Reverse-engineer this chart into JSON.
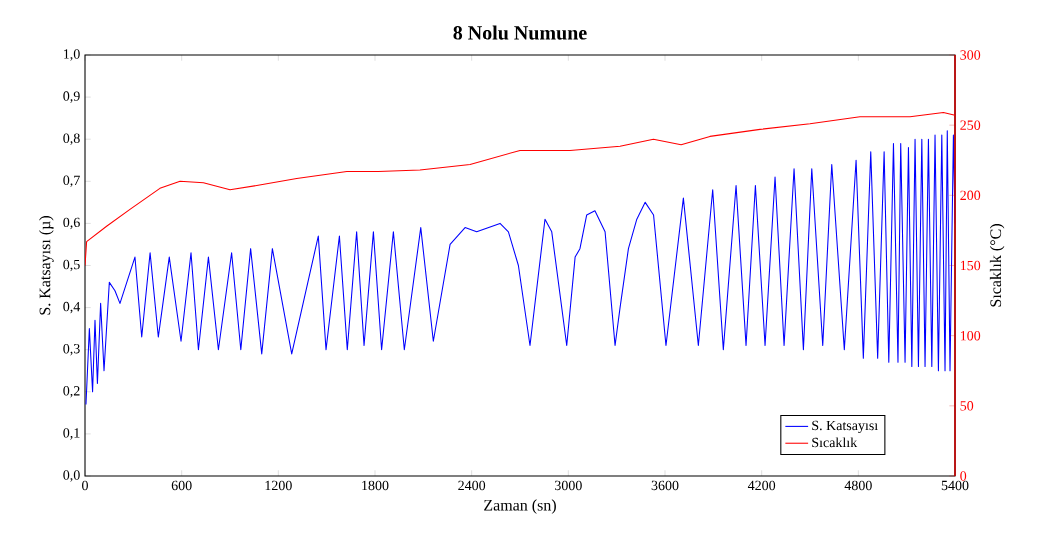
{
  "chart_data": {
    "type": "line",
    "title": "**8 Nolu Numune**",
    "xlabel": "Zaman (sn)",
    "ylabel": "S. Katsayısı (µ)",
    "y2label": "Sıcaklık (°C)",
    "xlim": [
      0,
      5400
    ],
    "xticks": [
      0,
      600,
      1200,
      1800,
      2400,
      3000,
      3600,
      4200,
      4800,
      5400
    ],
    "ylim": [
      0,
      1
    ],
    "yticks": [
      {
        "value": 0,
        "label": "0,0"
      },
      {
        "value": 0.1,
        "label": "0,1"
      },
      {
        "value": 0.2,
        "label": "0,2"
      },
      {
        "value": 0.3,
        "label": "0,3"
      },
      {
        "value": 0.4,
        "label": "0,4"
      },
      {
        "value": 0.5,
        "label": "0,5"
      },
      {
        "value": 0.6,
        "label": "0,6"
      },
      {
        "value": 0.7,
        "label": "0,7"
      },
      {
        "value": 0.8,
        "label": "0,8"
      },
      {
        "value": 0.9,
        "label": "0,9"
      },
      {
        "value": 1,
        "label": "1,0"
      }
    ],
    "y2lim": [
      0,
      300
    ],
    "y2ticks": [
      0,
      50,
      100,
      150,
      200,
      250,
      300
    ],
    "legend": "bottom right",
    "marker": "none",
    "line_style": "solid",
    "grid": false,
    "series": [
      {
        "name": "S. Katsayısı",
        "color": "#0000ff",
        "axis": "y",
        "x": [
          6,
          27,
          47,
          62,
          77,
          97,
          118,
          151,
          186,
          217,
          310,
          352,
          404,
          455,
          523,
          596,
          658,
          704,
          766,
          828,
          910,
          967,
          1028,
          1097,
          1163,
          1283,
          1448,
          1496,
          1579,
          1628,
          1686,
          1732,
          1790,
          1841,
          1914,
          1982,
          2084,
          2162,
          2266,
          2359,
          2431,
          2576,
          2628,
          2690,
          2762,
          2855,
          2897,
          2990,
          3042,
          3072,
          3114,
          3165,
          3228,
          3290,
          3321,
          3373,
          3425,
          3477,
          3529,
          3606,
          3714,
          3807,
          3896,
          3962,
          4041,
          4103,
          4161,
          4221,
          4283,
          4339,
          4401,
          4459,
          4511,
          4579,
          4635,
          4713,
          4786,
          4831,
          4877,
          4920,
          4960,
          4989,
          5018,
          5046,
          5063,
          5090,
          5111,
          5132,
          5152,
          5173,
          5194,
          5214,
          5235,
          5256,
          5276,
          5297,
          5318,
          5338,
          5352,
          5369,
          5390,
          5400
        ],
        "values": [
          0.17,
          0.35,
          0.2,
          0.37,
          0.22,
          0.41,
          0.25,
          0.46,
          0.44,
          0.41,
          0.52,
          0.33,
          0.53,
          0.33,
          0.52,
          0.32,
          0.53,
          0.3,
          0.52,
          0.3,
          0.53,
          0.3,
          0.54,
          0.29,
          0.54,
          0.29,
          0.57,
          0.3,
          0.57,
          0.3,
          0.58,
          0.31,
          0.58,
          0.3,
          0.58,
          0.3,
          0.59,
          0.32,
          0.55,
          0.59,
          0.58,
          0.6,
          0.58,
          0.5,
          0.31,
          0.61,
          0.58,
          0.31,
          0.52,
          0.54,
          0.62,
          0.63,
          0.58,
          0.31,
          0.4,
          0.54,
          0.61,
          0.65,
          0.62,
          0.31,
          0.66,
          0.31,
          0.68,
          0.3,
          0.69,
          0.31,
          0.69,
          0.31,
          0.71,
          0.31,
          0.73,
          0.3,
          0.73,
          0.31,
          0.74,
          0.3,
          0.75,
          0.28,
          0.77,
          0.28,
          0.77,
          0.27,
          0.79,
          0.27,
          0.79,
          0.27,
          0.78,
          0.26,
          0.8,
          0.26,
          0.8,
          0.26,
          0.8,
          0.26,
          0.81,
          0.25,
          0.81,
          0.25,
          0.82,
          0.25,
          0.81,
          0.6
        ]
      },
      {
        "name": "Sıcaklık",
        "color": "#ff0000",
        "axis": "y2",
        "x": [
          0,
          10,
          134,
          279,
          465,
          590,
          735,
          900,
          1066,
          1314,
          1625,
          1820,
          2079,
          2390,
          2700,
          3010,
          3321,
          3528,
          3700,
          3879,
          4190,
          4500,
          4810,
          5121,
          5328,
          5400
        ],
        "values": [
          150,
          167,
          178,
          190,
          205,
          210,
          209,
          204,
          207,
          212,
          217,
          217,
          218,
          222,
          232,
          232,
          235,
          240,
          236,
          242,
          247,
          251,
          256,
          256,
          259,
          257
        ]
      }
    ]
  }
}
